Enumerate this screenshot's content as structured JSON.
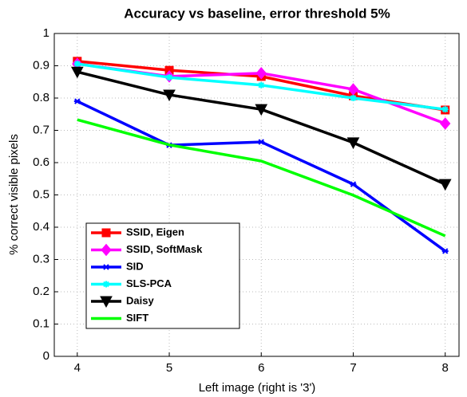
{
  "chart_data": {
    "type": "line",
    "title": "Accuracy vs baseline, error threshold 5%",
    "x_label": "Left image (right is '3')",
    "y_label": "% correct visible pixels",
    "x": [
      4,
      5,
      6,
      7,
      8
    ],
    "xlim": [
      3.75,
      8.15
    ],
    "xticks": [
      4,
      5,
      6,
      7,
      8
    ],
    "ylim": [
      0,
      1
    ],
    "yticks": [
      0,
      0.1,
      0.2,
      0.3,
      0.4,
      0.5,
      0.6,
      0.7,
      0.8,
      0.9,
      1
    ],
    "grid": true,
    "legend": "lower left",
    "series": [
      {
        "name": "SSID, Eigen",
        "color": "#ff0000",
        "marker": "square",
        "values": [
          0.914,
          0.886,
          0.867,
          0.807,
          0.763
        ]
      },
      {
        "name": "SSID, SoftMask",
        "color": "#ff00ff",
        "marker": "diamond",
        "values": [
          0.906,
          0.867,
          0.877,
          0.827,
          0.721
        ]
      },
      {
        "name": "SID",
        "color": "#0000ff",
        "marker": "x",
        "values": [
          0.79,
          0.654,
          0.664,
          0.533,
          0.326
        ]
      },
      {
        "name": "SLS-PCA",
        "color": "#00ffff",
        "marker": "star",
        "values": [
          0.906,
          0.864,
          0.84,
          0.8,
          0.765
        ]
      },
      {
        "name": "Daisy",
        "color": "#000000",
        "marker": "triangle-down",
        "values": [
          0.881,
          0.81,
          0.765,
          0.662,
          0.533
        ]
      },
      {
        "name": "SIFT",
        "color": "#00ff00",
        "marker": "none",
        "values": [
          0.733,
          0.655,
          0.605,
          0.499,
          0.373
        ]
      }
    ]
  }
}
